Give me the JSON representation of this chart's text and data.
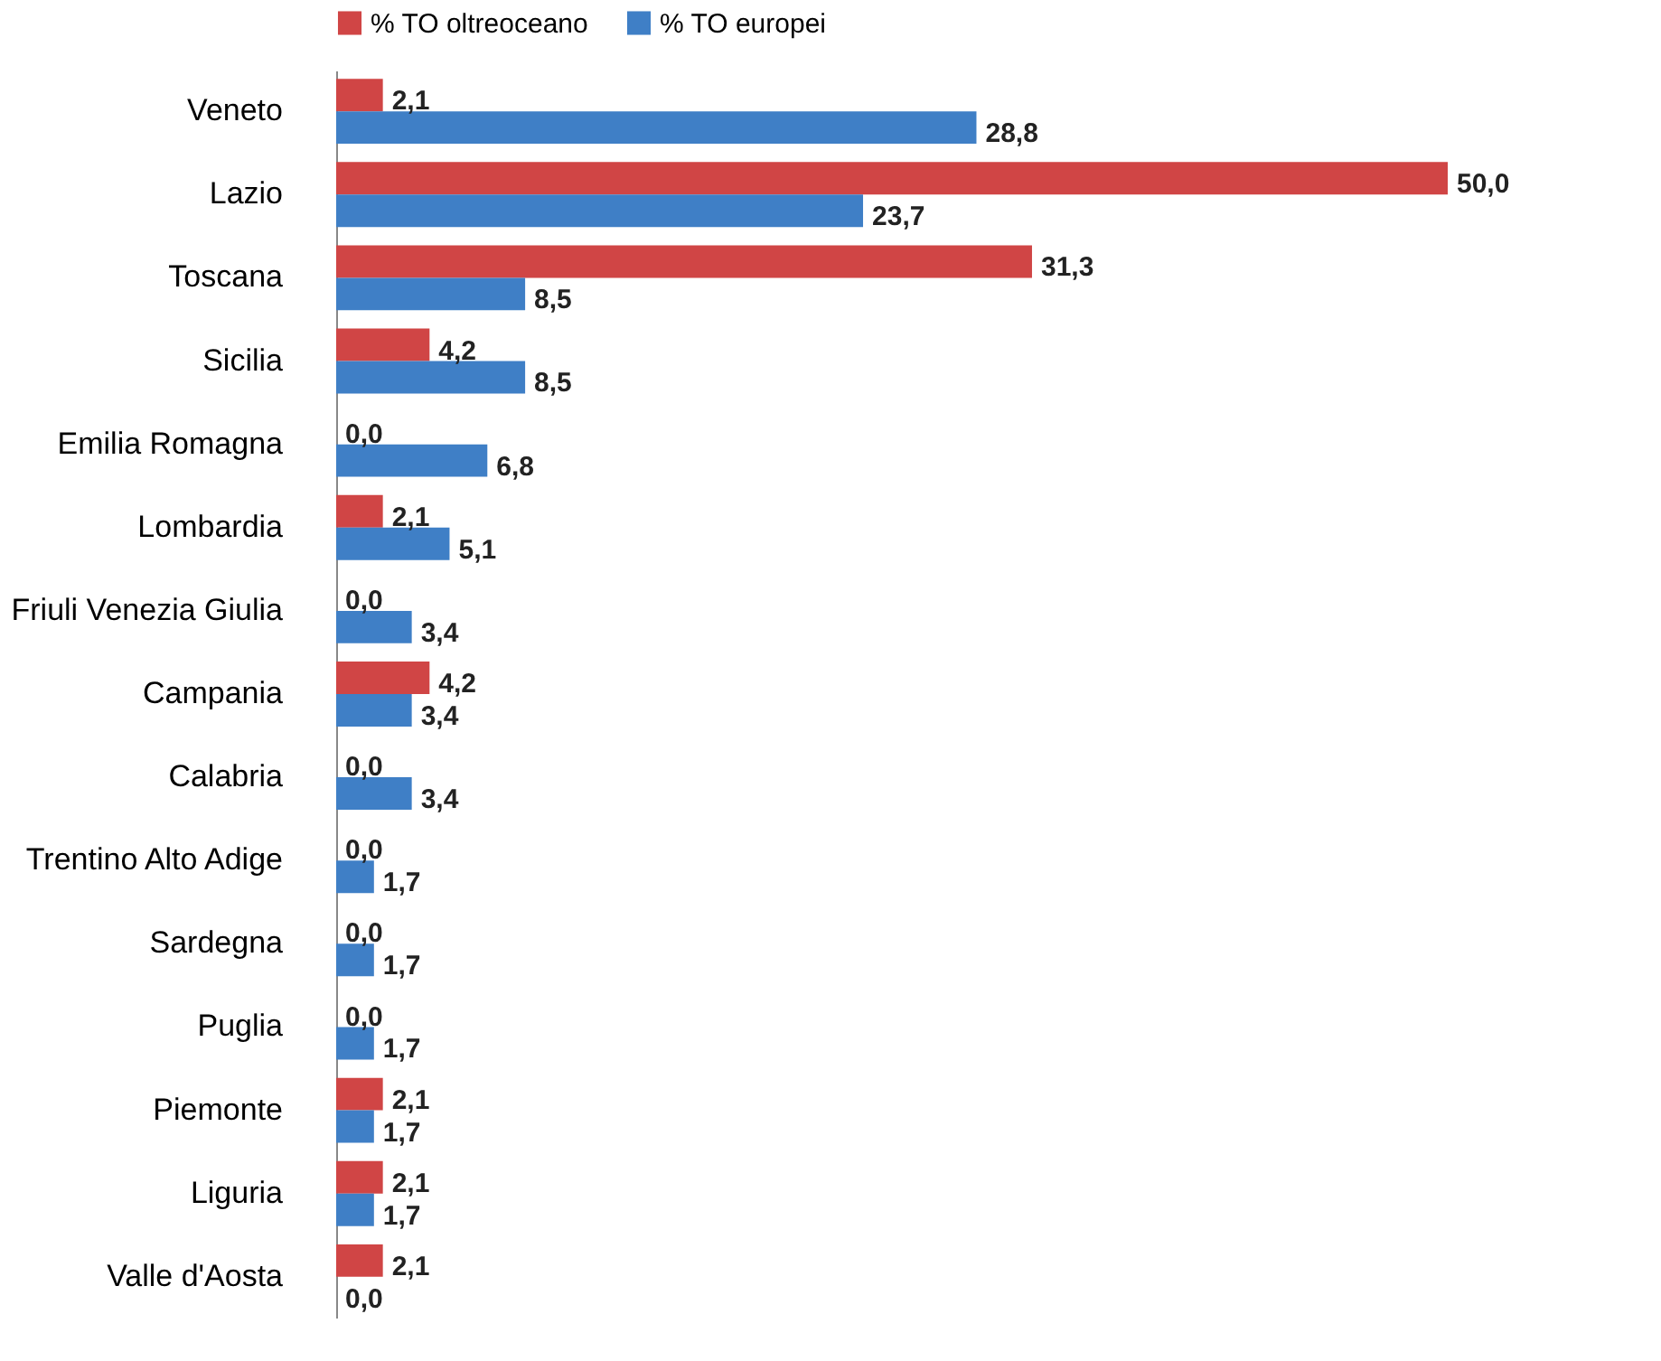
{
  "chart_data": {
    "type": "bar",
    "orientation": "horizontal",
    "legend": "top",
    "grid": false,
    "categories": [
      "Veneto",
      "Lazio",
      "Toscana",
      "Sicilia",
      "Emilia Romagna",
      "Lombardia",
      "Friuli Venezia Giulia",
      "Campania",
      "Calabria",
      "Trentino Alto Adige",
      "Sardegna",
      "Puglia",
      "Piemonte",
      "Liguria",
      "Valle d'Aosta"
    ],
    "series": [
      {
        "name": "% TO oltreoceano",
        "color": "#d04545",
        "values": [
          2.1,
          50.0,
          31.3,
          4.2,
          0.0,
          2.1,
          0.0,
          4.2,
          0.0,
          0.0,
          0.0,
          0.0,
          2.1,
          2.1,
          2.1
        ],
        "value_labels": [
          "2,1",
          "50,0",
          "31,3",
          "4,2",
          "0,0",
          "2,1",
          "0,0",
          "4,2",
          "0,0",
          "0,0",
          "0,0",
          "0,0",
          "2,1",
          "2,1",
          "2,1"
        ]
      },
      {
        "name": "% TO europei",
        "color": "#3f7fc6",
        "values": [
          28.8,
          23.7,
          8.5,
          8.5,
          6.8,
          5.1,
          3.4,
          3.4,
          3.4,
          1.7,
          1.7,
          1.7,
          1.7,
          1.7,
          0.0
        ],
        "value_labels": [
          "28,8",
          "23,7",
          "8,5",
          "8,5",
          "6,8",
          "5,1",
          "3,4",
          "3,4",
          "3,4",
          "1,7",
          "1,7",
          "1,7",
          "1,7",
          "1,7",
          "0,0"
        ]
      }
    ]
  }
}
